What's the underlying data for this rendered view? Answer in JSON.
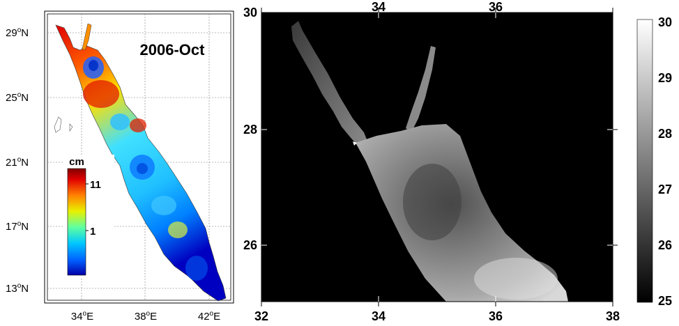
{
  "left_map": {
    "title": "2006-Oct",
    "lat_labels": [
      "29",
      "25",
      "21",
      "17",
      "13"
    ],
    "lat_suffix": "N",
    "lon_labels": [
      "34",
      "38",
      "42"
    ],
    "lon_suffix": "E",
    "degree_symbol": "o",
    "colorbar": {
      "unit": "cm",
      "tick_labels": [
        "11",
        "1"
      ],
      "colormap": "jet",
      "colors": [
        "#0000a8",
        "#0060ff",
        "#00c8ff",
        "#60ffa0",
        "#e8f000",
        "#ff8000",
        "#e00000",
        "#800000"
      ]
    }
  },
  "right_map": {
    "x_tick_labels": [
      "32",
      "34",
      "36",
      "38"
    ],
    "y_tick_labels": [
      "30",
      "28",
      "26"
    ],
    "background": "#000000",
    "colorbar": {
      "tick_labels": [
        "30",
        "29",
        "28",
        "27",
        "26",
        "25"
      ],
      "colormap": "gray"
    }
  }
}
